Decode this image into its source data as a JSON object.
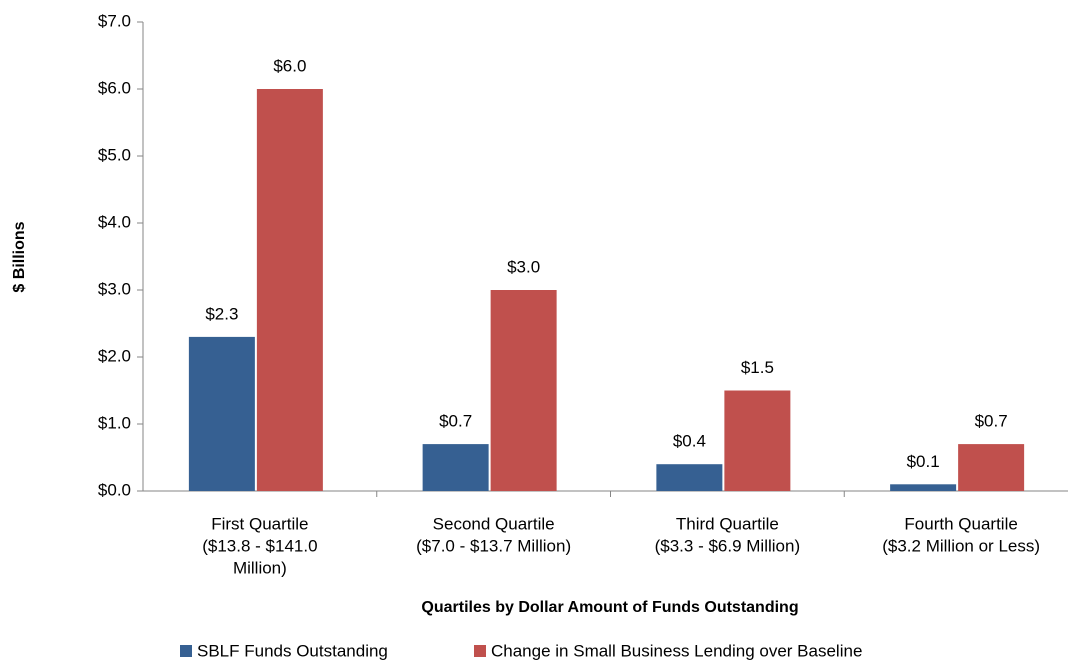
{
  "chart_data": {
    "type": "bar",
    "xlabel": "Quartiles by Dollar Amount of Funds Outstanding",
    "ylabel": "$ Billions",
    "categories": [
      [
        "First Quartile",
        "($13.8 - $141.0",
        "Million)"
      ],
      [
        "Second Quartile",
        "($7.0 - $13.7 Million)"
      ],
      [
        "Third Quartile",
        "($3.3 - $6.9 Million)"
      ],
      [
        "Fourth Quartile",
        "($3.2 Million or Less)"
      ]
    ],
    "series": [
      {
        "name": "SBLF Funds Outstanding",
        "color": "#366092",
        "values": [
          2.3,
          0.7,
          0.4,
          0.1
        ],
        "value_labels": [
          "$2.3",
          "$0.7",
          "$0.4",
          "$0.1"
        ]
      },
      {
        "name": "Change in Small Business Lending over Baseline",
        "color": "#c0504d",
        "values": [
          6.0,
          3.0,
          1.5,
          0.7
        ],
        "value_labels": [
          "$6.0",
          "$3.0",
          "$1.5",
          "$0.7"
        ]
      }
    ],
    "ylim": [
      0,
      7
    ],
    "yticks": [
      {
        "value": 0,
        "label": "$0.0"
      },
      {
        "value": 1,
        "label": "$1.0"
      },
      {
        "value": 2,
        "label": "$2.0"
      },
      {
        "value": 3,
        "label": "$3.0"
      },
      {
        "value": 4,
        "label": "$4.0"
      },
      {
        "value": 5,
        "label": "$5.0"
      },
      {
        "value": 6,
        "label": "$6.0"
      },
      {
        "value": 7,
        "label": "$7.0"
      }
    ],
    "grid": false,
    "legend": "bottom"
  }
}
